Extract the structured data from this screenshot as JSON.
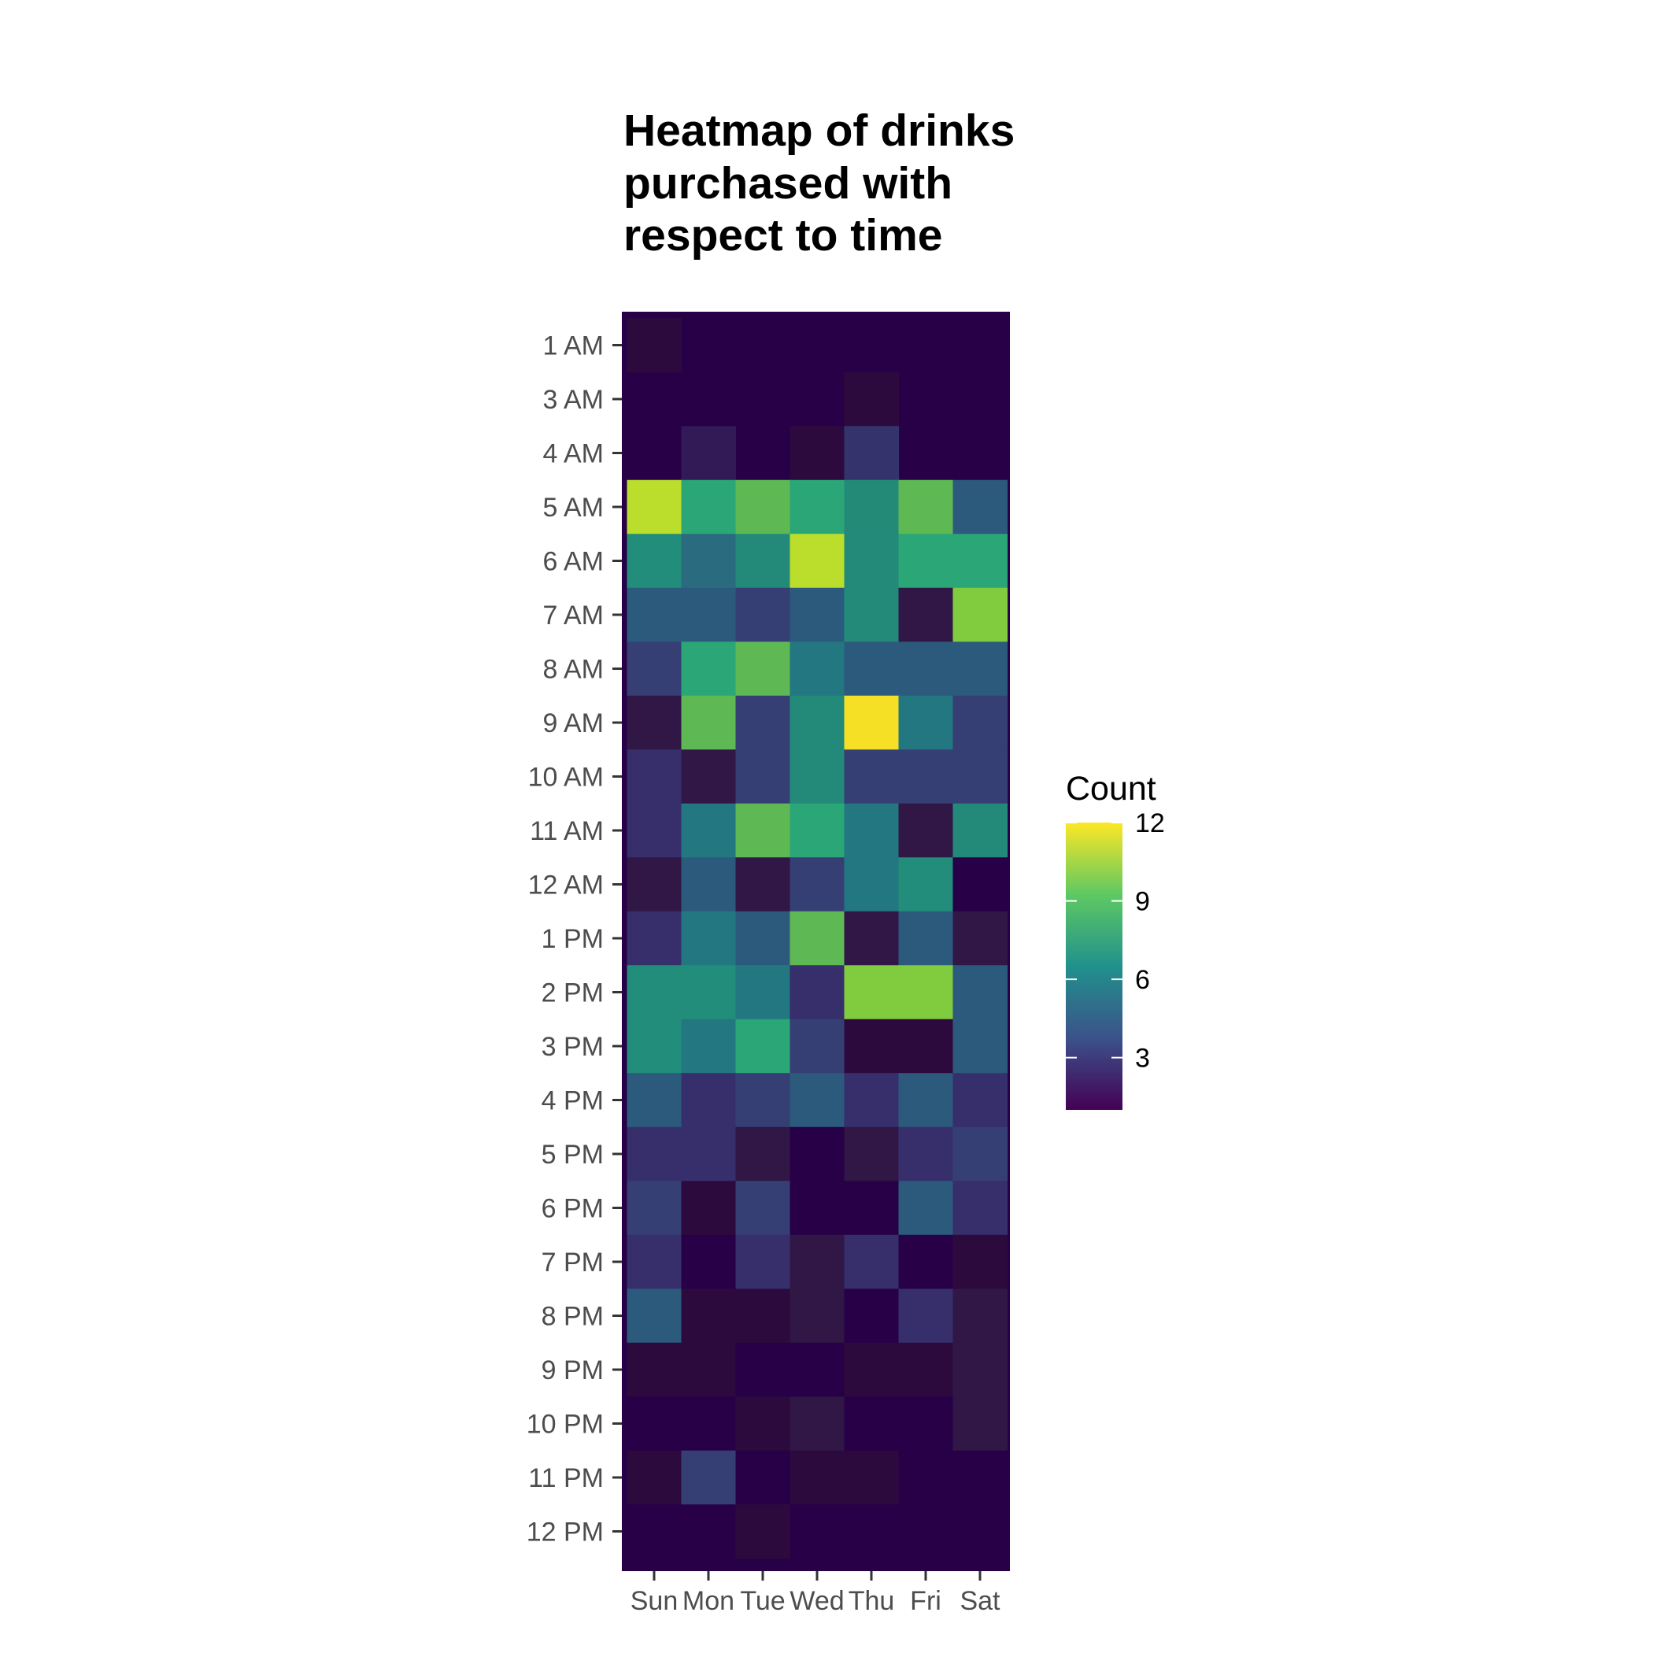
{
  "chart_data": {
    "type": "heatmap",
    "title_lines": [
      "Heatmap of drinks",
      "purchased with",
      "respect to time"
    ],
    "xlabel": "",
    "ylabel": "",
    "x_categories": [
      "Sun",
      "Mon",
      "Tue",
      "Wed",
      "Thu",
      "Fri",
      "Sat"
    ],
    "y_categories": [
      "1 AM",
      "3 AM",
      "4 AM",
      "5 AM",
      "6 AM",
      "7 AM",
      "8 AM",
      "9 AM",
      "10 AM",
      "11 AM",
      "12 AM",
      "1 PM",
      "2 PM",
      "3 PM",
      "4 PM",
      "5 PM",
      "6 PM",
      "7 PM",
      "8 PM",
      "9 PM",
      "10 PM",
      "11 PM",
      "12 PM"
    ],
    "values": [
      [
        1,
        null,
        null,
        null,
        null,
        null,
        null
      ],
      [
        null,
        null,
        null,
        null,
        1,
        null,
        null
      ],
      [
        null,
        2,
        null,
        1,
        3,
        null,
        null
      ],
      [
        11,
        8,
        9,
        8,
        7,
        9,
        5
      ],
      [
        7,
        6,
        7,
        11,
        7,
        8,
        8
      ],
      [
        5,
        5,
        4,
        5,
        7,
        2,
        10
      ],
      [
        4,
        8,
        9,
        6,
        5,
        5,
        5
      ],
      [
        2,
        9,
        4,
        7,
        12,
        6,
        4
      ],
      [
        3,
        2,
        4,
        7,
        4,
        4,
        4
      ],
      [
        3,
        6,
        9,
        8,
        6,
        2,
        7
      ],
      [
        2,
        5,
        2,
        4,
        6,
        7,
        1
      ],
      [
        3,
        6,
        5,
        9,
        2,
        5,
        2
      ],
      [
        7,
        7,
        6,
        3,
        10,
        10,
        5
      ],
      [
        7,
        6,
        8,
        4,
        1,
        1,
        5
      ],
      [
        5,
        3,
        4,
        5,
        3,
        5,
        3
      ],
      [
        3,
        3,
        2,
        1,
        2,
        3,
        4
      ],
      [
        4,
        1,
        4,
        1,
        1,
        5,
        3
      ],
      [
        3,
        1,
        3,
        2,
        3,
        1,
        1
      ],
      [
        5,
        1,
        1,
        2,
        1,
        3,
        2
      ],
      [
        1,
        1,
        1,
        1,
        1,
        1,
        2
      ],
      [
        1,
        1,
        1,
        2,
        1,
        1,
        2
      ],
      [
        1,
        4,
        1,
        1,
        1,
        1,
        1
      ],
      [
        1,
        1,
        1,
        1,
        1,
        1,
        1
      ]
    ],
    "fill_colors": [
      [
        "#2d0a3d",
        "#270047",
        "#270047",
        "#270047",
        "#270047",
        "#270047",
        "#270047"
      ],
      [
        "#270047",
        "#270047",
        "#270047",
        "#270047",
        "#2d0a3d",
        "#270047",
        "#270047"
      ],
      [
        "#270047",
        "#311a55",
        "#270047",
        "#2d0a3d",
        "#35336b",
        "#270047",
        "#270047"
      ],
      [
        "#bbdd2b",
        "#2aa677",
        "#5eb955",
        "#2aa677",
        "#238a77",
        "#5eb955",
        "#2c5a7c"
      ],
      [
        "#228d7a",
        "#2b6b80",
        "#238a7a",
        "#bbdd2b",
        "#238a7a",
        "#2aa677",
        "#2aa677"
      ],
      [
        "#2c5a7c",
        "#2c5a7c",
        "#353f74",
        "#2c5a7c",
        "#238a7a",
        "#301746",
        "#80cb3e"
      ],
      [
        "#353f74",
        "#2aa677",
        "#5eb955",
        "#237780",
        "#2c5a7c",
        "#2c5a7c",
        "#2c5a7c"
      ],
      [
        "#301746",
        "#5eb955",
        "#353f74",
        "#238a7a",
        "#f5e025",
        "#237780",
        "#353f74"
      ],
      [
        "#362f6c",
        "#301746",
        "#353f74",
        "#238a7a",
        "#353f74",
        "#353f74",
        "#353f74"
      ],
      [
        "#362f6c",
        "#237780",
        "#5eb955",
        "#2aa677",
        "#237780",
        "#301746",
        "#238a7a"
      ],
      [
        "#301746",
        "#2c5a7c",
        "#301746",
        "#353f74",
        "#237780",
        "#228d7a",
        "#270047"
      ],
      [
        "#362f6c",
        "#237780",
        "#2c5a7c",
        "#5eb955",
        "#301746",
        "#2c5a7c",
        "#301746"
      ],
      [
        "#228d7a",
        "#228d7a",
        "#237780",
        "#362f6c",
        "#80cb3e",
        "#80cb3e",
        "#2c5a7c"
      ],
      [
        "#228d7a",
        "#237780",
        "#2aa677",
        "#353f74",
        "#2d0a3d",
        "#2d0a3d",
        "#2c5a7c"
      ],
      [
        "#2c5a7c",
        "#362f6c",
        "#353f74",
        "#2c5a7c",
        "#362f6c",
        "#2c5a7c",
        "#362f6c"
      ],
      [
        "#362f6c",
        "#362f6c",
        "#301746",
        "#270047",
        "#301746",
        "#362f6c",
        "#353f74"
      ],
      [
        "#353f74",
        "#2d0a3d",
        "#353f74",
        "#270047",
        "#270047",
        "#2c5a7c",
        "#362f6c"
      ],
      [
        "#362f6c",
        "#270047",
        "#362f6c",
        "#301746",
        "#362f6c",
        "#270047",
        "#2d0a3d"
      ],
      [
        "#2c5a7c",
        "#2d0a3d",
        "#2d0a3d",
        "#301746",
        "#270047",
        "#362f6c",
        "#301746"
      ],
      [
        "#2d0a3d",
        "#2d0a3d",
        "#270047",
        "#270047",
        "#2d0a3d",
        "#2d0a3d",
        "#301746"
      ],
      [
        "#270047",
        "#270047",
        "#2d0a3d",
        "#301746",
        "#270047",
        "#270047",
        "#301746"
      ],
      [
        "#2d0a3d",
        "#353f74",
        "#270047",
        "#2d0a3d",
        "#2d0a3d",
        "#270047",
        "#270047"
      ],
      [
        "#270047",
        "#270047",
        "#2d0a3d",
        "#270047",
        "#270047",
        "#270047",
        "#270047"
      ]
    ],
    "panel_background": "#270047",
    "legend": {
      "title": "Count",
      "ticks": [
        3,
        6,
        9,
        12
      ],
      "range": [
        1,
        12
      ],
      "colors": [
        "#440154",
        "#3b528b",
        "#21918c",
        "#5ec962",
        "#fde725"
      ],
      "placement": "right"
    },
    "colormap": "viridis",
    "grid": false
  }
}
